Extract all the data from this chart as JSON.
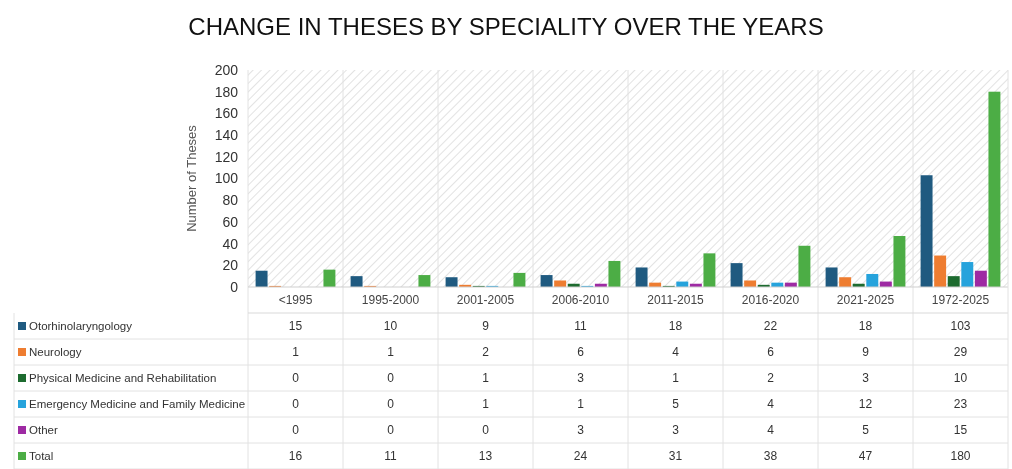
{
  "chart_data": {
    "type": "bar",
    "title": "CHANGE IN THESES BY SPECIALITY OVER THE YEARS",
    "ylabel": "Number of Theses",
    "categories": [
      "<1995",
      "1995-2000",
      "2001-2005",
      "2006-2010",
      "2011-2015",
      "2016-2020",
      "2021-2025",
      "1972-2025"
    ],
    "series": [
      {
        "name": "Otorhinolaryngology",
        "color": "#1f5a80",
        "values": [
          15,
          10,
          9,
          11,
          18,
          22,
          18,
          103
        ]
      },
      {
        "name": "Neurology",
        "color": "#ee7d31",
        "values": [
          1,
          1,
          2,
          6,
          4,
          6,
          9,
          29
        ]
      },
      {
        "name": "Physical Medicine and Rehabilitation",
        "color": "#1d6b2f",
        "values": [
          0,
          0,
          1,
          3,
          1,
          2,
          3,
          10
        ]
      },
      {
        "name": "Emergency Medicine and Family Medicine",
        "color": "#26a3dc",
        "values": [
          0,
          0,
          1,
          1,
          5,
          4,
          12,
          23
        ]
      },
      {
        "name": "Other",
        "color": "#9e2aa3",
        "values": [
          0,
          0,
          0,
          3,
          3,
          4,
          5,
          15
        ]
      },
      {
        "name": "Total",
        "color": "#4cad45",
        "values": [
          16,
          11,
          13,
          24,
          31,
          38,
          47,
          180
        ]
      }
    ],
    "ylim": [
      0,
      200
    ],
    "yticks": [
      0,
      20,
      40,
      60,
      80,
      100,
      120,
      140,
      160,
      180,
      200
    ],
    "grid": false,
    "legend": "bottom",
    "data_labels": true
  }
}
